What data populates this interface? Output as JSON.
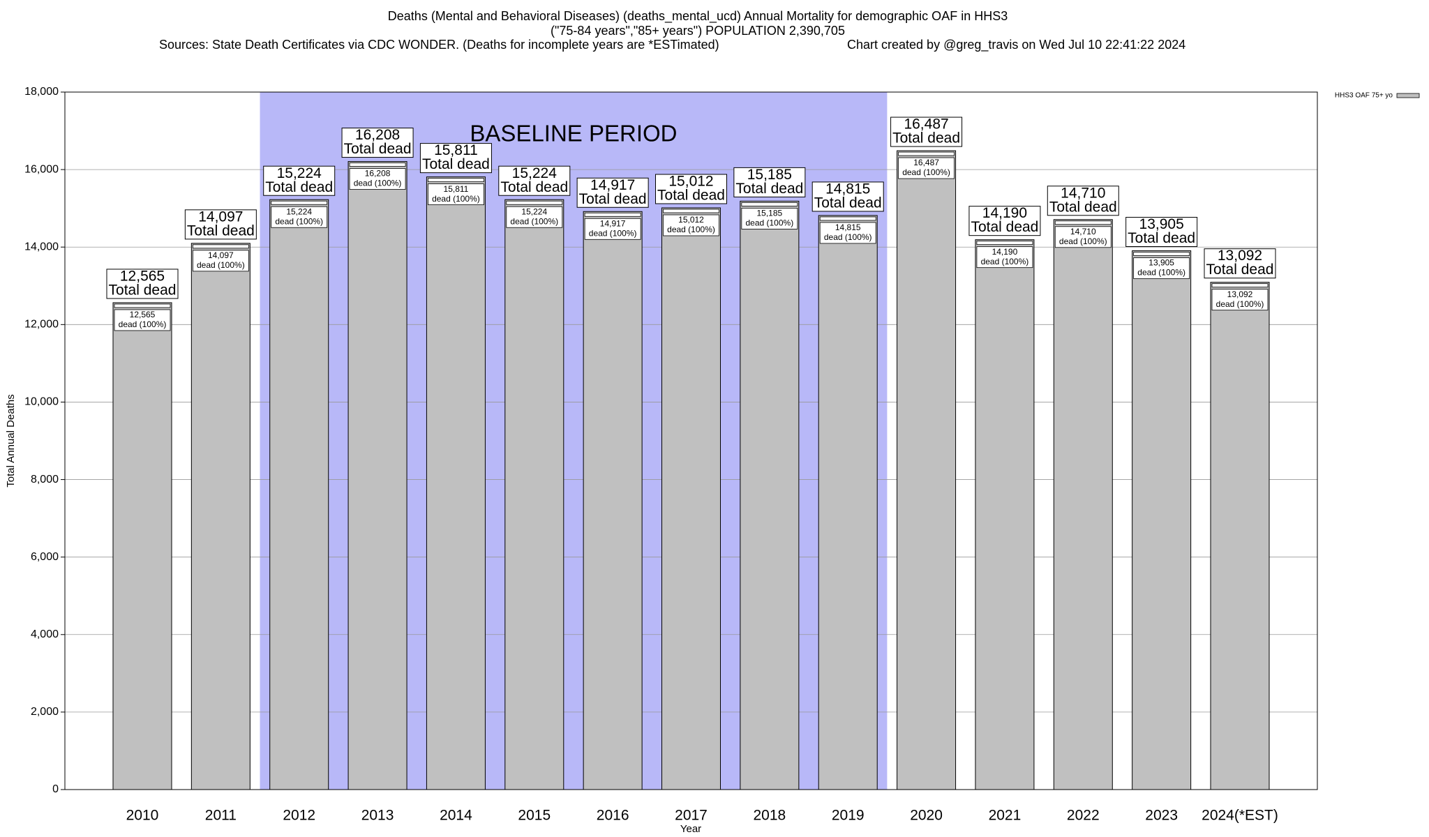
{
  "chart_data": {
    "type": "bar",
    "title": "Deaths (Mental and Behavioral Diseases) (deaths_mental_ucd) Annual Mortality for demographic OAF in HHS3",
    "subtitle": "(\"75-84 years\",\"85+ years\") POPULATION 2,390,705",
    "source": "Sources: State Death Certificates via CDC WONDER. (Deaths for incomplete years are *ESTimated)",
    "credit": "Chart created by @greg_travis on Wed Jul 10 22:41:22 2024",
    "x_label": "Year",
    "y_label": "Total Annual Deaths",
    "categories": [
      "2010",
      "2011",
      "2012",
      "2013",
      "2014",
      "2015",
      "2016",
      "2017",
      "2018",
      "2019",
      "2020",
      "2021",
      "2022",
      "2023",
      "2024(*EST)"
    ],
    "series": [
      {
        "name": "HHS3 OAF 75+ yo",
        "color": "#c0c0c0",
        "values": [
          12565,
          14097,
          15224,
          16208,
          15811,
          15224,
          14917,
          15012,
          15185,
          14815,
          16487,
          14190,
          14710,
          13905,
          13092
        ],
        "value_labels": [
          "12,565",
          "14,097",
          "15,224",
          "16,208",
          "15,811",
          "15,224",
          "14,917",
          "15,012",
          "15,185",
          "14,815",
          "16,487",
          "14,190",
          "14,710",
          "13,905",
          "13,092"
        ]
      }
    ],
    "total_label": "Total dead",
    "inner_label": "dead (100%)",
    "baseline": {
      "label": "BASELINE PERIOD",
      "start": "2012",
      "end": "2019",
      "color": "#b8b8f8"
    },
    "ylim": [
      0,
      18000
    ],
    "yticks": [
      0,
      {
        "value": 2000,
        "label": "2,000"
      },
      {
        "value": 4000,
        "label": "4,000"
      },
      {
        "value": 6000,
        "label": "6,000"
      },
      {
        "value": 8000,
        "label": "8,000"
      },
      {
        "value": 10000,
        "label": "10,000"
      },
      {
        "value": 12000,
        "label": "12,000"
      },
      {
        "value": 14000,
        "label": "14,000"
      },
      {
        "value": 16000,
        "label": "16,000"
      },
      {
        "value": 18000,
        "label": "18,000"
      }
    ],
    "grid": true,
    "legend": "top-right"
  }
}
